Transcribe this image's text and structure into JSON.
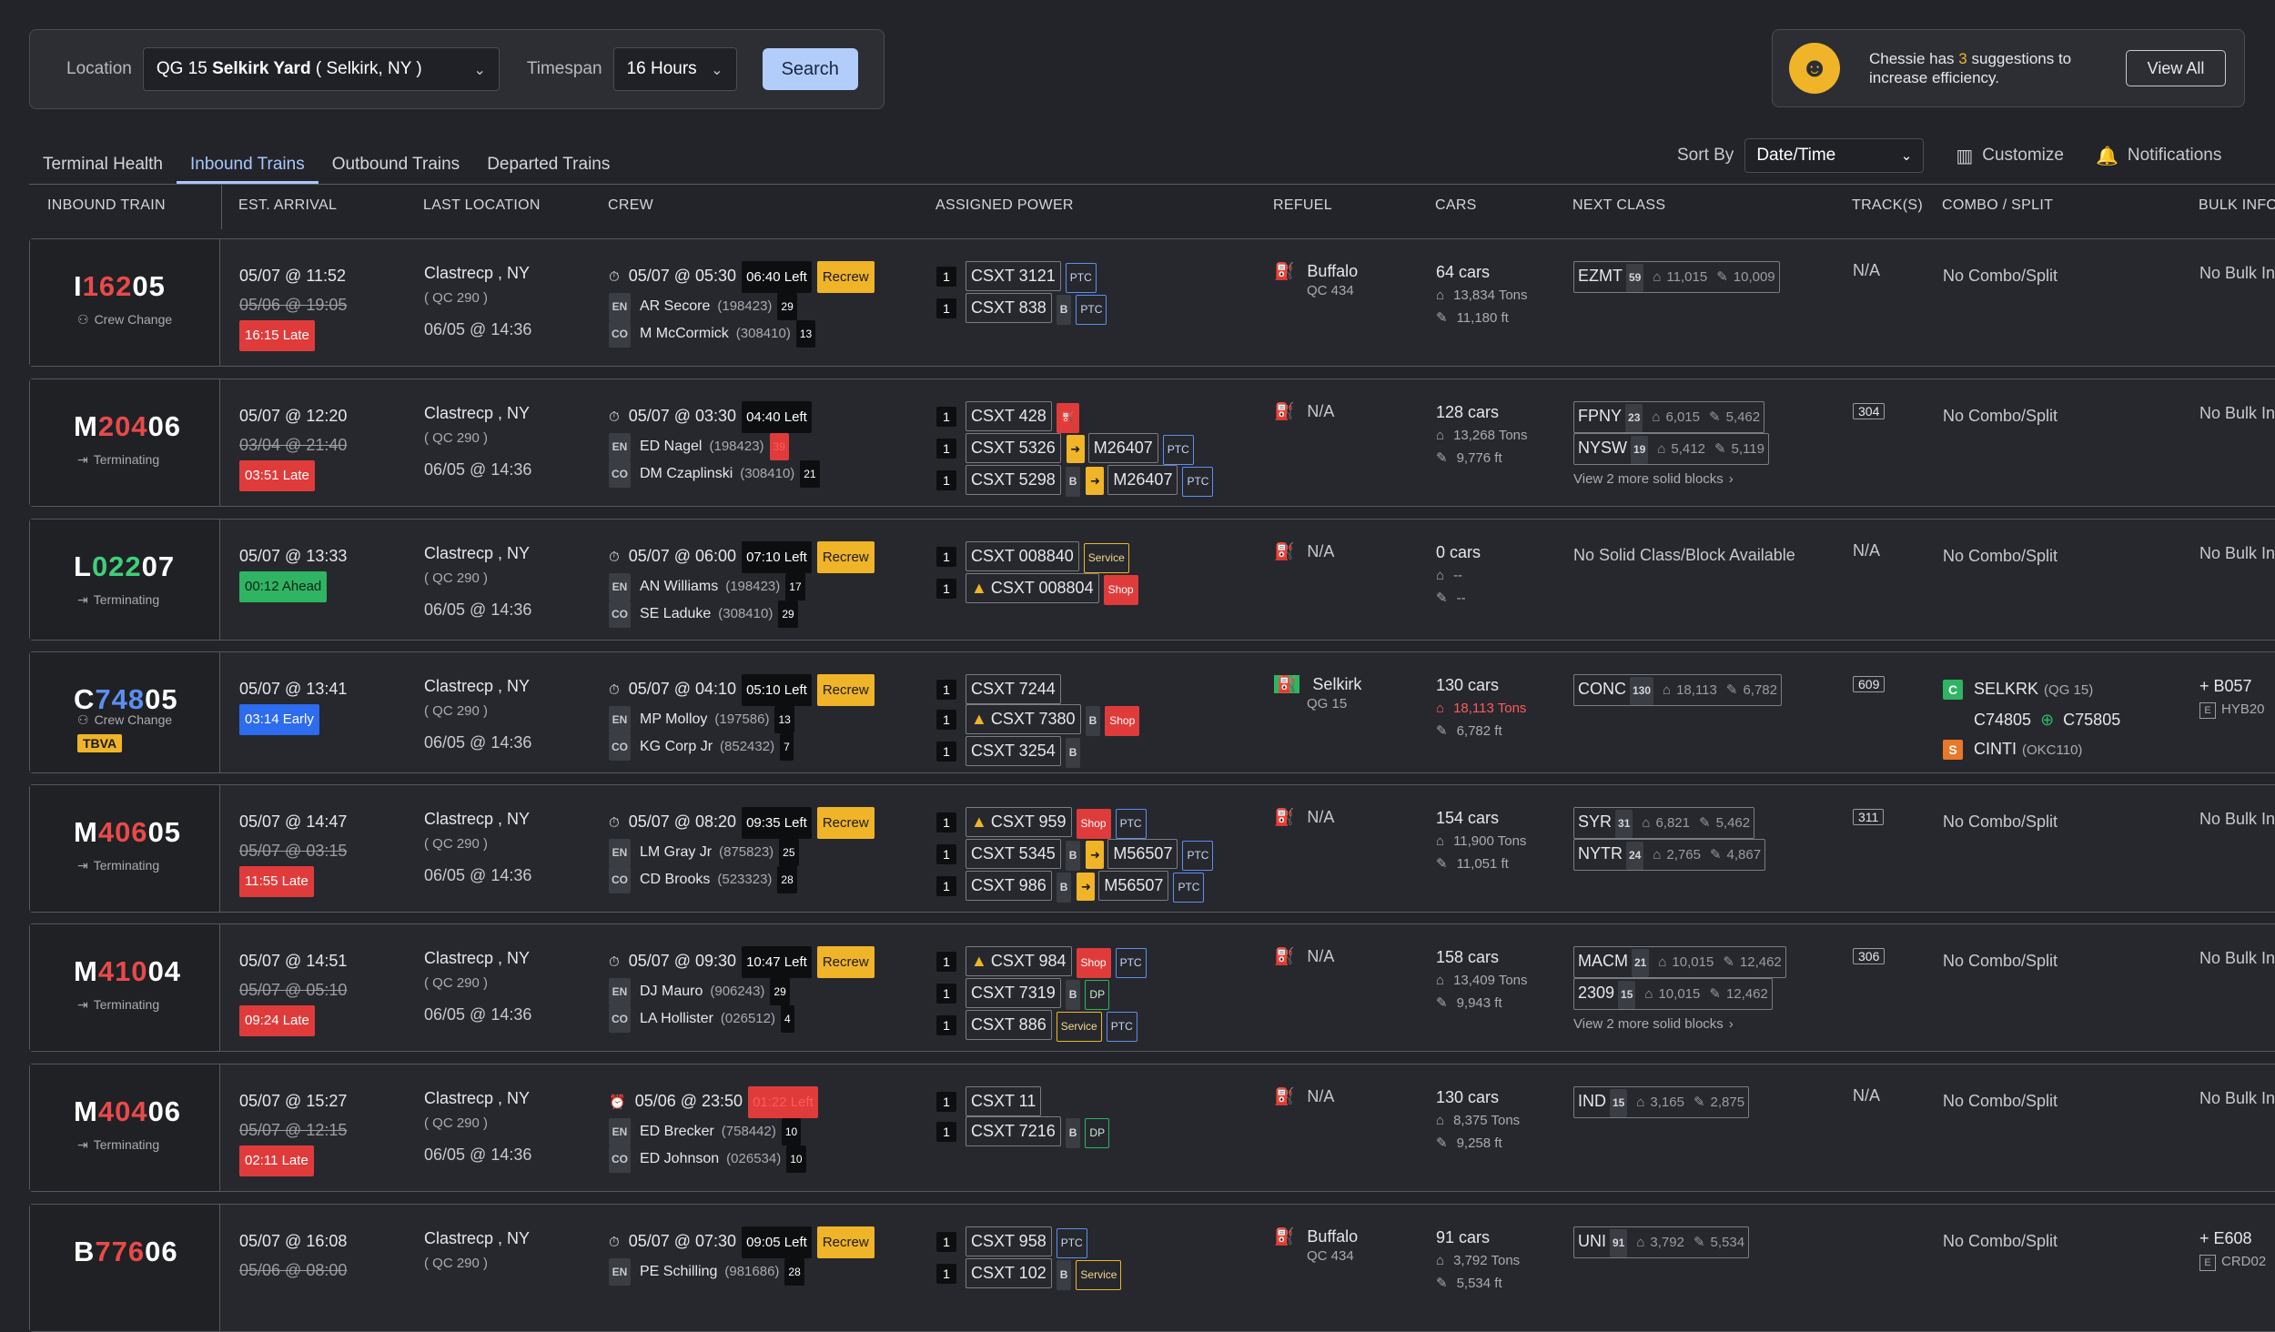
{
  "filters": {
    "location_label": "Location",
    "location_code": "QG  15",
    "location_name": "Selkirk Yard",
    "location_detail": "( Selkirk, NY )",
    "timespan_label": "Timespan",
    "timespan_value": "16 Hours",
    "search_label": "Search"
  },
  "chessie": {
    "text_pre": "Chessie has",
    "count": "3",
    "text_post": "suggestions to increase efficiency.",
    "view_all": "View All"
  },
  "tabs": [
    "Terminal Health",
    "Inbound Trains",
    "Outbound Trains",
    "Departed Trains"
  ],
  "sort": {
    "label": "Sort By",
    "value": "Date/Time",
    "customize": "Customize",
    "notifications": "Notifications"
  },
  "columns": [
    "INBOUND TRAIN",
    "EST. ARRIVAL",
    "LAST LOCATION",
    "CREW",
    "ASSIGNED POWER",
    "REFUEL",
    "CARS",
    "NEXT CLASS",
    "TRACK(S)",
    "COMBO / SPLIT",
    "BULK INFO"
  ],
  "rows": [
    {
      "pre": "I",
      "mid": "162",
      "post": "05",
      "midc": "r",
      "sub": "Crew Change",
      "eta": "05/07 @ 11:52",
      "orig": "05/06 @ 19:05",
      "delta": "16:15 Late",
      "dt": "late",
      "loc": "Clastrecp , NY",
      "qc": "( QC 290 )",
      "lt": "06/05 @ 14:36",
      "crew_time": "05/07 @ 05:30",
      "crew_left": "06:40 Left",
      "recrew": "Recrew",
      "en": "AR Secore",
      "en_id": "(198423)",
      "en_n": "29",
      "co": "M McCormick",
      "co_id": "(308410)",
      "co_n": "13",
      "power": [
        {
          "q": "1",
          "id": "CSXT 3121",
          "ptc": "PTC"
        },
        {
          "q": "1",
          "id": "CSXT 838",
          "b": "B",
          "ptc": "PTC"
        }
      ],
      "refuel": "Buffalo",
      "refuel_sub": "QC  434",
      "cars": "64 cars",
      "tons": "13,834 Tons",
      "ft": "11,180 ft",
      "cls": [
        {
          "c": "EZMT",
          "n": "59",
          "w": "11,015",
          "l": "10,009"
        }
      ],
      "track": "N/A",
      "combo": "No Combo/Split",
      "bulk": "No Bulk In"
    },
    {
      "pre": "M",
      "mid": "204",
      "post": "06",
      "midc": "r",
      "sub": "Terminating",
      "eta": "05/07 @ 12:20",
      "orig": "03/04 @ 21:40",
      "delta": "03:51 Late",
      "dt": "late",
      "loc": "Clastrecp , NY",
      "qc": "( QC 290 )",
      "lt": "06/05 @ 14:36",
      "crew_time": "05/07 @ 03:30",
      "crew_left": "04:40 Left",
      "en": "ED Nagel",
      "en_id": "(198423)",
      "en_n": "39",
      "co": "DM Czaplinski",
      "co_id": "(308410)",
      "co_n": "21",
      "power": [
        {
          "q": "1",
          "id": "CSXT 428"
        },
        {
          "q": "1",
          "id": "CSXT 5326",
          "to": "M26407",
          "ptc": "PTC"
        },
        {
          "q": "1",
          "id": "CSXT 5298",
          "b": "B",
          "to": "M26407",
          "ptc": "PTC"
        }
      ],
      "refuel": "N/A",
      "cars": "128 cars",
      "tons": "13,268 Tons",
      "ft": "9,776 ft",
      "cls": [
        {
          "c": "FPNY",
          "n": "23",
          "w": "6,015",
          "l": "5,462"
        },
        {
          "c": "NYSW",
          "n": "19",
          "w": "5,412",
          "l": "5,119"
        }
      ],
      "more": "View 2 more solid blocks",
      "track": "304",
      "combo": "No Combo/Split",
      "bulk": "No Bulk In"
    },
    {
      "pre": "L",
      "mid": "022",
      "post": "07",
      "midc": "g",
      "sub": "Terminating",
      "eta": "05/07 @ 13:33",
      "delta": "00:12 Ahead",
      "dt": "ahead",
      "loc": "Clastrecp , NY",
      "qc": "( QC 290 )",
      "lt": "06/05 @ 14:36",
      "crew_time": "05/07 @ 06:00",
      "crew_left": "07:10 Left",
      "recrew": "Recrew",
      "en": "AN Williams",
      "en_id": "(198423)",
      "en_n": "17",
      "co": "SE Laduke",
      "co_id": "(308410)",
      "co_n": "29",
      "power": [
        {
          "q": "1",
          "id": "CSXT 008840",
          "service": "Service"
        },
        {
          "q": "1",
          "id": "CSXT 008804",
          "warn": true,
          "shop": "Shop"
        }
      ],
      "refuel": "N/A",
      "cars": "0 cars",
      "tons": "--",
      "ft": "--",
      "noclass": "No Solid Class/Block Available",
      "track": "N/A",
      "combo": "No Combo/Split",
      "bulk": "No Bulk In"
    },
    {
      "pre": "C",
      "mid": "748",
      "post": "05",
      "midc": "b",
      "sub": "Crew Change",
      "tbva": "TBVA",
      "eta": "05/07 @ 13:41",
      "delta": "03:14 Early",
      "dt": "early",
      "loc": "Clastrecp , NY",
      "qc": "( QC 290 )",
      "lt": "06/05 @ 14:36",
      "crew_time": "05/07 @ 04:10",
      "crew_left": "05:10 Left",
      "recrew": "Recrew",
      "en": "MP Molloy",
      "en_id": "(197586)",
      "en_n": "13",
      "co": "KG Corp Jr",
      "co_id": "(852432)",
      "co_n": "7",
      "power": [
        {
          "q": "1",
          "id": "CSXT 7244"
        },
        {
          "q": "1",
          "id": "CSXT 7380",
          "warn": true,
          "b": "B",
          "shop": "Shop"
        },
        {
          "q": "1",
          "id": "CSXT 3254",
          "b": "B"
        }
      ],
      "refuel": "Selkirk",
      "refuel_sub": "QG  15",
      "cars": "130 cars",
      "tons": "18,113 Tons",
      "tons_red": true,
      "ft": "6,782 ft",
      "cls": [
        {
          "c": "CONC",
          "n": "130",
          "w": "18,113",
          "l": "6,782"
        }
      ],
      "track": "609",
      "combo_c": "SELKRK",
      "combo_c_sub": "(QG 15)",
      "combo_a": "C74805",
      "combo_b": "C75805",
      "combo_s": "CINTI",
      "combo_s_sub": "(OKC110)",
      "bulk": "+ B057",
      "bulk2": "HYB20"
    },
    {
      "pre": "M",
      "mid": "406",
      "post": "05",
      "midc": "r",
      "sub": "Terminating",
      "eta": "05/07 @ 14:47",
      "orig": "05/07 @ 03:15",
      "delta": "11:55 Late",
      "dt": "late",
      "loc": "Clastrecp , NY",
      "qc": "( QC 290 )",
      "lt": "06/05 @ 14:36",
      "crew_time": "05/07 @ 08:20",
      "crew_left": "09:35 Left",
      "recrew": "Recrew",
      "en": "LM Gray Jr",
      "en_id": "(875823)",
      "en_n": "25",
      "co": "CD Brooks",
      "co_id": "(523323)",
      "co_n": "28",
      "power": [
        {
          "q": "1",
          "id": "CSXT 959",
          "warn": true,
          "shop": "Shop",
          "ptc": "PTC"
        },
        {
          "q": "1",
          "id": "CSXT 5345",
          "b": "B",
          "to": "M56507",
          "ptc": "PTC"
        },
        {
          "q": "1",
          "id": "CSXT 986",
          "b": "B",
          "to": "M56507",
          "ptc": "PTC"
        }
      ],
      "refuel": "N/A",
      "cars": "154 cars",
      "tons": "11,900 Tons",
      "ft": "11,051 ft",
      "cls": [
        {
          "c": "SYR",
          "n": "31",
          "w": "6,821",
          "l": "5,462"
        },
        {
          "c": "NYTR",
          "n": "24",
          "w": "2,765",
          "l": "4,867"
        }
      ],
      "track": "311",
      "combo": "No Combo/Split",
      "bulk": "No Bulk In"
    },
    {
      "pre": "M",
      "mid": "410",
      "post": "04",
      "midc": "r",
      "sub": "Terminating",
      "eta": "05/07 @ 14:51",
      "orig": "05/07 @ 05:10",
      "delta": "09:24 Late",
      "dt": "late",
      "loc": "Clastrecp , NY",
      "qc": "( QC 290 )",
      "lt": "06/05 @ 14:36",
      "crew_time": "05/07 @ 09:30",
      "crew_left": "10:47 Left",
      "recrew": "Recrew",
      "en": "DJ Mauro",
      "en_id": "(906243)",
      "en_n": "29",
      "co": "LA Hollister",
      "co_id": "(026512)",
      "co_n": "4",
      "power": [
        {
          "q": "1",
          "id": "CSXT 984",
          "warn": true,
          "shop": "Shop",
          "ptc": "PTC"
        },
        {
          "q": "1",
          "id": "CSXT 7319",
          "b": "B",
          "dp": "DP"
        },
        {
          "q": "1",
          "id": "CSXT 886",
          "service": "Service",
          "ptc": "PTC"
        }
      ],
      "refuel": "N/A",
      "cars": "158 cars",
      "tons": "13,409 Tons",
      "ft": "9,943 ft",
      "cls": [
        {
          "c": "MACM",
          "n": "21",
          "w": "10,015",
          "l": "12,462"
        },
        {
          "c": "2309",
          "n": "15",
          "w": "10,015",
          "l": "12,462"
        }
      ],
      "more": "View 2 more solid blocks",
      "track": "306",
      "combo": "No Combo/Split",
      "bulk": "No Bulk In"
    },
    {
      "pre": "M",
      "mid": "404",
      "post": "06",
      "midc": "r",
      "sub": "Terminating",
      "eta": "05/07 @ 15:27",
      "orig": "05/07 @ 12:15",
      "delta": "02:11 Late",
      "dt": "late",
      "loc": "Clastrecp , NY",
      "qc": "( QC 290 )",
      "lt": "06/05 @ 14:36",
      "crew_time": "05/06 @ 23:50",
      "crew_left": "01:22 Left",
      "crew_red": true,
      "en": "ED Brecker",
      "en_id": "(758442)",
      "en_n": "10",
      "co": "ED Johnson",
      "co_id": "(026534)",
      "co_n": "10",
      "power": [
        {
          "q": "1",
          "id": "CSXT 11"
        },
        {
          "q": "1",
          "id": "CSXT 7216",
          "b": "B",
          "dp": "DP"
        }
      ],
      "refuel": "N/A",
      "cars": "130 cars",
      "tons": "8,375 Tons",
      "ft": "9,258 ft",
      "cls": [
        {
          "c": "IND",
          "n": "15",
          "w": "3,165",
          "l": "2,875"
        }
      ],
      "track": "N/A",
      "combo": "No Combo/Split",
      "bulk": "No Bulk In"
    },
    {
      "pre": "B",
      "mid": "776",
      "post": "06",
      "midc": "r",
      "sub": "",
      "eta": "05/07 @ 16:08",
      "orig": "05/06 @ 08:00",
      "delta": "",
      "loc": "Clastrecp , NY",
      "qc": "( QC 290 )",
      "lt": "",
      "crew_time": "05/07 @ 07:30",
      "crew_left": "09:05 Left",
      "recrew": "Recrew",
      "en": "PE Schilling",
      "en_id": "(981686)",
      "en_n": "28",
      "co": "",
      "co_id": "",
      "co_n": "",
      "power": [
        {
          "q": "1",
          "id": "CSXT 958",
          "ptc": "PTC"
        },
        {
          "q": "1",
          "id": "CSXT 102",
          "b": "B",
          "service": "Service"
        }
      ],
      "refuel": "Buffalo",
      "refuel_sub": "QC  434",
      "cars": "91 cars",
      "tons": "3,792 Tons",
      "ft": "5,534 ft",
      "cls": [
        {
          "c": "UNI",
          "n": "91",
          "w": "3,792",
          "l": "5,534"
        }
      ],
      "track": "",
      "combo": "No Combo/Split",
      "bulk": "+ E608",
      "bulk2": "CRD02"
    }
  ]
}
